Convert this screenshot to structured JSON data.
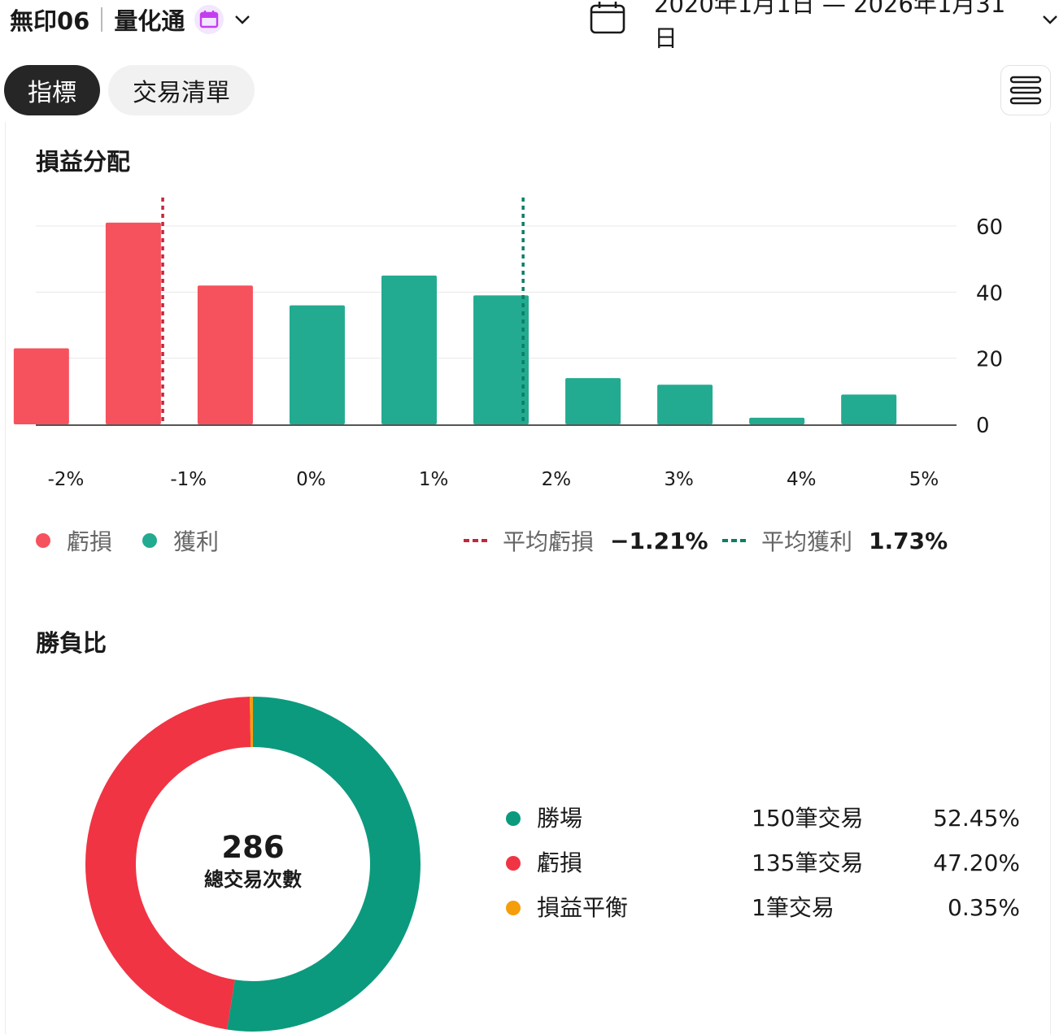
{
  "header": {
    "strategy_name": "無印06",
    "product": "量化通",
    "date_range": "2020年1月1日 — 2026年1月31日",
    "icons": [
      "calendar-badge-icon",
      "chevron-down-icon",
      "calendar-icon",
      "hamburger-menu-icon"
    ]
  },
  "tabs": [
    {
      "label": "指標",
      "active": true
    },
    {
      "label": "交易清單",
      "active": false
    }
  ],
  "pnl_distribution": {
    "title": "損益分配",
    "legend": {
      "loss": "虧損",
      "profit": "獲利",
      "avg_loss_label": "平均虧損",
      "avg_loss_value": "−1.21%",
      "avg_profit_label": "平均獲利",
      "avg_profit_value": "1.73%"
    }
  },
  "chart_data": {
    "type": "bar",
    "title": "損益分配",
    "x_tick_labels": [
      "-2%",
      "-1%",
      "0%",
      "1%",
      "2%",
      "3%",
      "4%",
      "5%"
    ],
    "y_tick_labels": [
      "60",
      "40",
      "20",
      "0"
    ],
    "ylim": [
      0,
      60
    ],
    "grid": true,
    "series": [
      {
        "name": "虧損",
        "color": "#f5525e",
        "bins": [
          {
            "x": -2.2,
            "y": 23
          },
          {
            "x": -1.45,
            "y": 61
          },
          {
            "x": -0.7,
            "y": 42
          }
        ]
      },
      {
        "name": "獲利",
        "color": "#23ab91",
        "bins": [
          {
            "x": 0.05,
            "y": 36
          },
          {
            "x": 0.8,
            "y": 45
          },
          {
            "x": 1.55,
            "y": 39
          },
          {
            "x": 2.3,
            "y": 14
          },
          {
            "x": 3.05,
            "y": 12
          },
          {
            "x": 3.8,
            "y": 2
          },
          {
            "x": 4.55,
            "y": 9
          }
        ]
      }
    ],
    "reference_lines": [
      {
        "name": "平均虧損",
        "x": -1.21,
        "color": "#c0283c"
      },
      {
        "name": "平均獲利",
        "x": 1.73,
        "color": "#0b7e66"
      }
    ]
  },
  "win_loss": {
    "title": "勝負比",
    "total": "286",
    "total_label": "總交易次數",
    "rows": [
      {
        "name": "勝場",
        "count": "150筆交易",
        "pct": "52.45%",
        "value": 52.45,
        "color": "#0b9a7e"
      },
      {
        "name": "虧損",
        "count": "135筆交易",
        "pct": "47.20%",
        "value": 47.2,
        "color": "#f03444"
      },
      {
        "name": "損益平衡",
        "count": "1筆交易",
        "pct": "0.35%",
        "value": 0.35,
        "color": "#f59e0b"
      }
    ]
  }
}
